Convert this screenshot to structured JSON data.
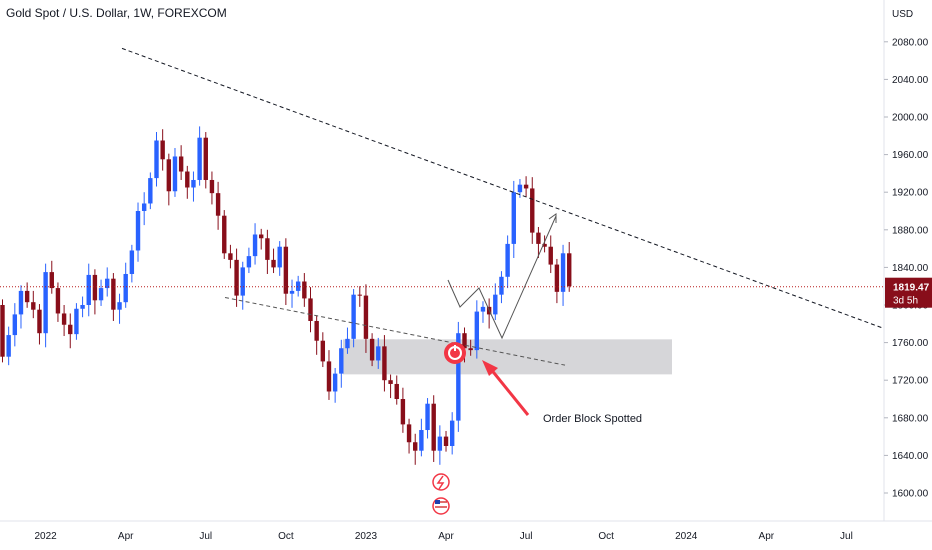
{
  "header": {
    "title": "Gold Spot / U.S. Dollar, 1W, FOREXCOM"
  },
  "price_axis": {
    "currency": "USD",
    "current_price": "1819.47",
    "countdown": "3d 5h"
  },
  "annotation": {
    "label": "Order Block Spotted"
  },
  "icons": {
    "event_1": "lightning-icon",
    "event_2": "us-flag-icon"
  },
  "colors": {
    "up": "#2962ff",
    "down": "#880e1a",
    "trend": "#131722",
    "price_line": "#b71c1c",
    "zone": "#c8c8cc",
    "arrow": "#f23645",
    "projection": "#555555",
    "grid": "#eef0f3"
  },
  "chart_data": {
    "type": "candlestick",
    "title": "Gold Spot / U.S. Dollar, 1W, FOREXCOM",
    "y_unit": "USD",
    "ylim": [
      1580,
      2120
    ],
    "y_ticks": [
      "2080.00",
      "2040.00",
      "2000.00",
      "1960.00",
      "1920.00",
      "1880.00",
      "1840.00",
      "1800.00",
      "1760.00",
      "1720.00",
      "1680.00",
      "1640.00",
      "1600.00"
    ],
    "x_ticks": [
      "2022",
      "Apr",
      "Jul",
      "Oct",
      "2023",
      "Apr",
      "Jul",
      "Oct",
      "2024",
      "Apr",
      "Jul"
    ],
    "grid": false,
    "last_price": 1819.47,
    "candles_close": [
      1745,
      1768,
      1790,
      1815,
      1803,
      1795,
      1770,
      1835,
      1818,
      1791,
      1779,
      1769,
      1796,
      1800,
      1832,
      1805,
      1818,
      1828,
      1795,
      1803,
      1833,
      1858,
      1900,
      1908,
      1935,
      1975,
      1955,
      1921,
      1958,
      1942,
      1925,
      1933,
      1978,
      1933,
      1919,
      1895,
      1855,
      1848,
      1810,
      1840,
      1852,
      1875,
      1871,
      1848,
      1840,
      1862,
      1812,
      1815,
      1825,
      1807,
      1783,
      1762,
      1740,
      1708,
      1727,
      1754,
      1764,
      1811,
      1810,
      1764,
      1741,
      1756,
      1720,
      1716,
      1700,
      1673,
      1654,
      1645,
      1667,
      1695,
      1645,
      1660,
      1650,
      1677,
      1770,
      1754,
      1752,
      1793,
      1798,
      1790,
      1811,
      1830,
      1865,
      1920,
      1928,
      1924,
      1877,
      1865,
      1862,
      1843,
      1814,
      1855,
      1820
    ],
    "projection_path": [
      [
        1829,
        1825
      ],
      [
        1804,
        1788
      ],
      [
        1823,
        1794
      ],
      [
        1766,
        1738
      ],
      [
        1895,
        1766
      ]
    ],
    "order_block_zone": [
      1738,
      1756,
      1762,
      1810
    ]
  }
}
